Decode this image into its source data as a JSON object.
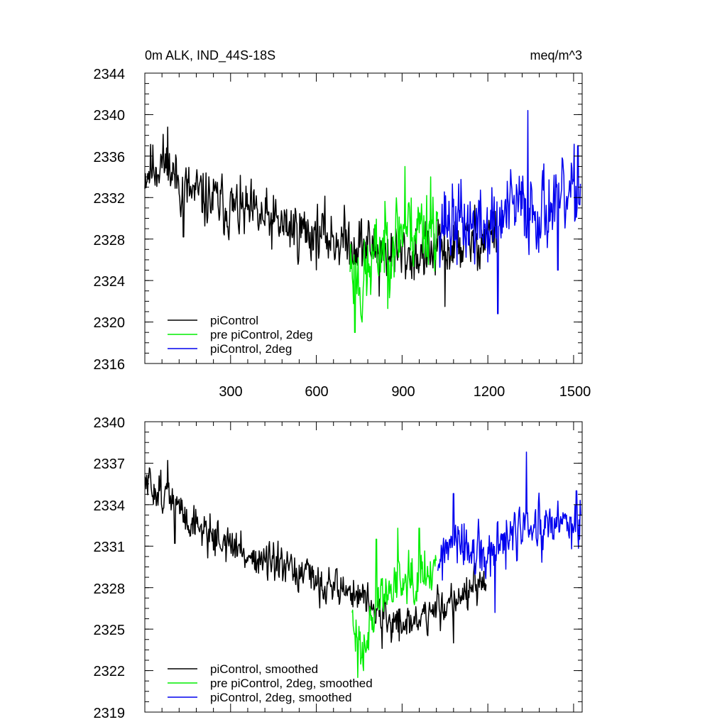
{
  "chart_data": [
    {
      "type": "line",
      "title": "0m ALK, IND_44S-18S",
      "units": "meq/m^3",
      "xlim": [
        0,
        1530
      ],
      "ylim": [
        2316,
        2344
      ],
      "xticks": [
        300,
        600,
        900,
        1200,
        1500
      ],
      "yticks": [
        2316,
        2320,
        2324,
        2328,
        2332,
        2336,
        2340,
        2344
      ],
      "ytick_labels": [
        "2316",
        "2320",
        "2324",
        "2328",
        "2332",
        "2336",
        "2340",
        "2344"
      ],
      "xtick_labels": [
        "300",
        "600",
        "900",
        "1200",
        "1500"
      ],
      "legend_position": "bottom-left",
      "series": [
        {
          "name": "piControl",
          "color": "#000000",
          "x_start": 0,
          "x_end": 1230,
          "trend": [
            [
              0,
              2334.5
            ],
            [
              60,
              2335.5
            ],
            [
              150,
              2332.5
            ],
            [
              300,
              2331
            ],
            [
              450,
              2329.5
            ],
            [
              600,
              2328.5
            ],
            [
              750,
              2327.5
            ],
            [
              900,
              2326.5
            ],
            [
              1000,
              2326.5
            ],
            [
              1100,
              2327.5
            ],
            [
              1230,
              2328.5
            ]
          ],
          "noise": 2.0,
          "seed": 11,
          "peaks": [
            [
              80,
              2338.8
            ],
            [
              135,
              2328.2
            ],
            [
              820,
              2322.5
            ],
            [
              1050,
              2321.5
            ]
          ]
        },
        {
          "name": "pre piControl, 2deg",
          "color": "#00ee00",
          "x_start": 718,
          "x_end": 1025,
          "trend": [
            [
              718,
              2326
            ],
            [
              760,
              2323.5
            ],
            [
              820,
              2327
            ],
            [
              900,
              2329
            ],
            [
              1025,
              2329.5
            ]
          ],
          "noise": 2.8,
          "seed": 23,
          "peaks": [
            [
              735,
              2319
            ],
            [
              760,
              2320
            ],
            [
              850,
              2321.3
            ],
            [
              910,
              2335
            ],
            [
              1000,
              2334
            ]
          ]
        },
        {
          "name": "piControl, 2deg",
          "color": "#0000ee",
          "x_start": 1030,
          "x_end": 1525,
          "trend": [
            [
              1030,
              2330
            ],
            [
              1100,
              2329.5
            ],
            [
              1200,
              2329
            ],
            [
              1300,
              2331
            ],
            [
              1400,
              2331
            ],
            [
              1525,
              2332
            ]
          ],
          "noise": 2.8,
          "seed": 37,
          "peaks": [
            [
              1340,
              2340.4
            ],
            [
              1235,
              2320.8
            ],
            [
              1445,
              2325
            ],
            [
              1515,
              2337
            ]
          ]
        }
      ]
    },
    {
      "type": "line",
      "title": "",
      "xlim": [
        0,
        1530
      ],
      "ylim": [
        2319,
        2340
      ],
      "xticks": [
        300,
        600,
        900,
        1200,
        1500
      ],
      "yticks": [
        2319,
        2322,
        2325,
        2328,
        2331,
        2334,
        2337,
        2340
      ],
      "ytick_labels": [
        "2319",
        "2322",
        "2325",
        "2328",
        "2331",
        "2334",
        "2337",
        "2340"
      ],
      "legend_position": "bottom-left",
      "series": [
        {
          "name": "piControl, smoothed",
          "color": "#000000",
          "x_start": 0,
          "x_end": 1195,
          "trend": [
            [
              0,
              2335.5
            ],
            [
              60,
              2335
            ],
            [
              150,
              2333
            ],
            [
              300,
              2331
            ],
            [
              450,
              2329.5
            ],
            [
              600,
              2328.5
            ],
            [
              750,
              2327.5
            ],
            [
              850,
              2325.5
            ],
            [
              950,
              2325.5
            ],
            [
              1100,
              2327.5
            ],
            [
              1195,
              2328
            ]
          ],
          "noise": 1.0,
          "seed": 51,
          "peaks": [
            [
              80,
              2337.2
            ],
            [
              105,
              2331.2
            ],
            [
              830,
              2323.6
            ],
            [
              1080,
              2324
            ]
          ]
        },
        {
          "name": "pre piControl, 2deg, smoothed",
          "color": "#00ee00",
          "x_start": 725,
          "x_end": 1020,
          "trend": [
            [
              725,
              2325
            ],
            [
              760,
              2324
            ],
            [
              820,
              2327
            ],
            [
              900,
              2329
            ],
            [
              1020,
              2329.5
            ]
          ],
          "noise": 1.3,
          "seed": 63,
          "peaks": [
            [
              745,
              2321.5
            ],
            [
              765,
              2322
            ],
            [
              810,
              2331.5
            ],
            [
              885,
              2332.3
            ],
            [
              960,
              2332.3
            ]
          ]
        },
        {
          "name": "piControl, 2deg, smoothed",
          "color": "#0000ee",
          "x_start": 1025,
          "x_end": 1525,
          "trend": [
            [
              1025,
              2330
            ],
            [
              1100,
              2331
            ],
            [
              1200,
              2330
            ],
            [
              1300,
              2332
            ],
            [
              1400,
              2332
            ],
            [
              1525,
              2333
            ]
          ],
          "noise": 1.4,
          "seed": 77,
          "peaks": [
            [
              1335,
              2337.8
            ],
            [
              1225,
              2326.2
            ],
            [
              1080,
              2334.8
            ],
            [
              1510,
              2335
            ]
          ]
        }
      ]
    }
  ]
}
